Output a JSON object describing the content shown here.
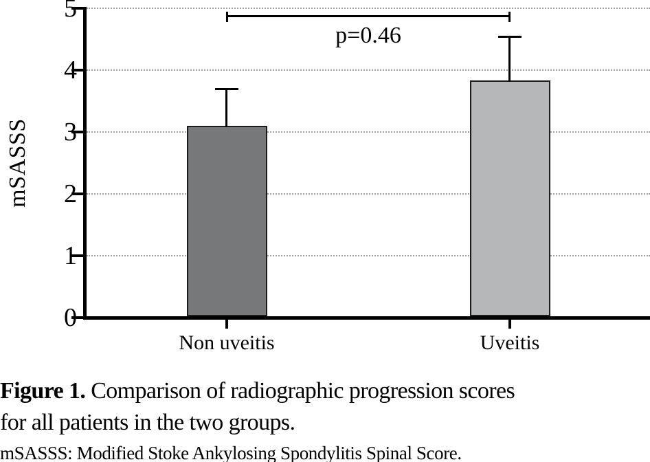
{
  "chart_data": {
    "type": "bar",
    "title": "",
    "xlabel": "",
    "ylabel": "mSASSS",
    "categories": [
      "Non uveitis",
      "Uveitis"
    ],
    "values": [
      3.1,
      3.83
    ],
    "error_plus": [
      0.6,
      0.72
    ],
    "error_top": [
      3.7,
      4.55
    ],
    "ylim": [
      0,
      5
    ],
    "yticks": [
      0,
      1,
      2,
      3,
      4,
      5
    ],
    "grid": "horizontal-dotted",
    "legend": "none",
    "bar_colors": [
      "#77787a",
      "#b5b7b9"
    ],
    "bar_border_color": "#1b1b1b",
    "annotation": {
      "text": "p=0.46",
      "from": "Non uveitis",
      "to": "Uveitis"
    }
  },
  "caption": {
    "label": "Figure 1.",
    "line1": " Comparison of radiographic progression scores",
    "line2": "for all patients in the two groups.",
    "footnote": "mSASSS: Modified Stoke Ankylosing Spondylitis Spinal Score."
  }
}
